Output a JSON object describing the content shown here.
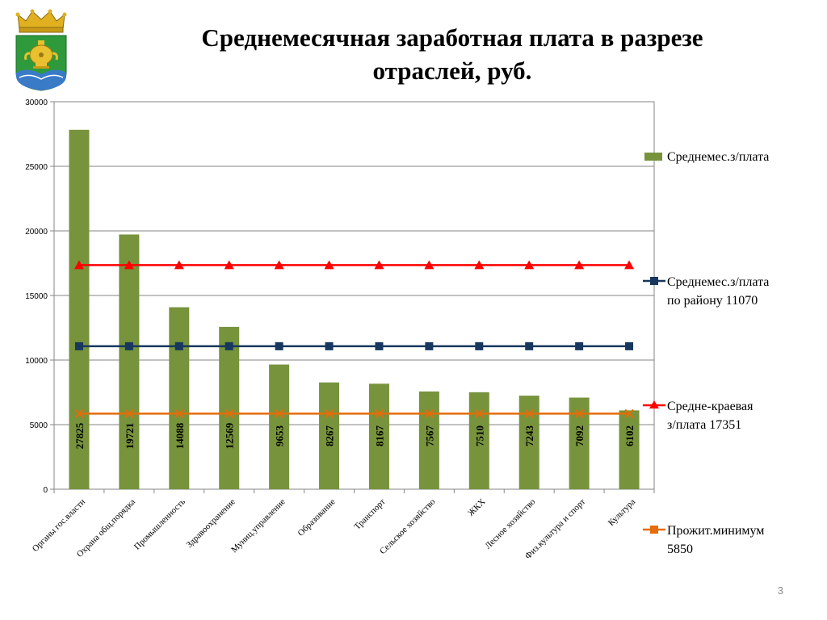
{
  "slide": {
    "title_line1": "Среднемесячная заработная плата в разрезе",
    "title_line2": "отраслей, руб.",
    "page_number": "3"
  },
  "colors": {
    "bar": "#77933C",
    "district_line": "#17375E",
    "regional_line": "#FF0000",
    "subsistence_line": "#E46C0A",
    "axis": "#868686",
    "grid": "#868686"
  },
  "chart_data": {
    "type": "bar",
    "ylim": [
      0,
      30000
    ],
    "yticks": [
      0,
      5000,
      10000,
      15000,
      20000,
      25000,
      30000
    ],
    "grid": true,
    "legend_position": "right",
    "categories": [
      "Органы гос.власти",
      "Охрана общ.порядка",
      "Промышленность",
      "Здравоохранение",
      "Муниц.управление",
      "Образование",
      "Транспорт",
      "Сельское хозяйство",
      "ЖКХ",
      "Лесное хозяйство",
      "Физ.культура и спорт",
      "Культура"
    ],
    "series": [
      {
        "name": "Среднемес.з/плата",
        "kind": "bar",
        "values": [
          27825,
          19721,
          14088,
          12569,
          9653,
          8267,
          8167,
          7567,
          7510,
          7243,
          7092,
          6102
        ],
        "labels": [
          "27825",
          "19721",
          "14088",
          "12569",
          "9653",
          "8267",
          "8167",
          "7567",
          "7510",
          "7243",
          "7092",
          "6102"
        ]
      },
      {
        "name_line1": "Среднемес.з/плата",
        "name_line2": "по району 11070",
        "kind": "line",
        "marker": "square",
        "values": [
          11070,
          11070,
          11070,
          11070,
          11070,
          11070,
          11070,
          11070,
          11070,
          11070,
          11070,
          11070
        ]
      },
      {
        "name_line1": "Средне-краевая",
        "name_line2": "з/плата 17351",
        "kind": "line",
        "marker": "triangle",
        "values": [
          17351,
          17351,
          17351,
          17351,
          17351,
          17351,
          17351,
          17351,
          17351,
          17351,
          17351,
          17351
        ]
      },
      {
        "name_line1": "Прожит.минимум",
        "name_line2": "5850",
        "kind": "line",
        "marker": "x",
        "values": [
          5850,
          5850,
          5850,
          5850,
          5850,
          5850,
          5850,
          5850,
          5850,
          5850,
          5850,
          5850
        ]
      }
    ]
  }
}
